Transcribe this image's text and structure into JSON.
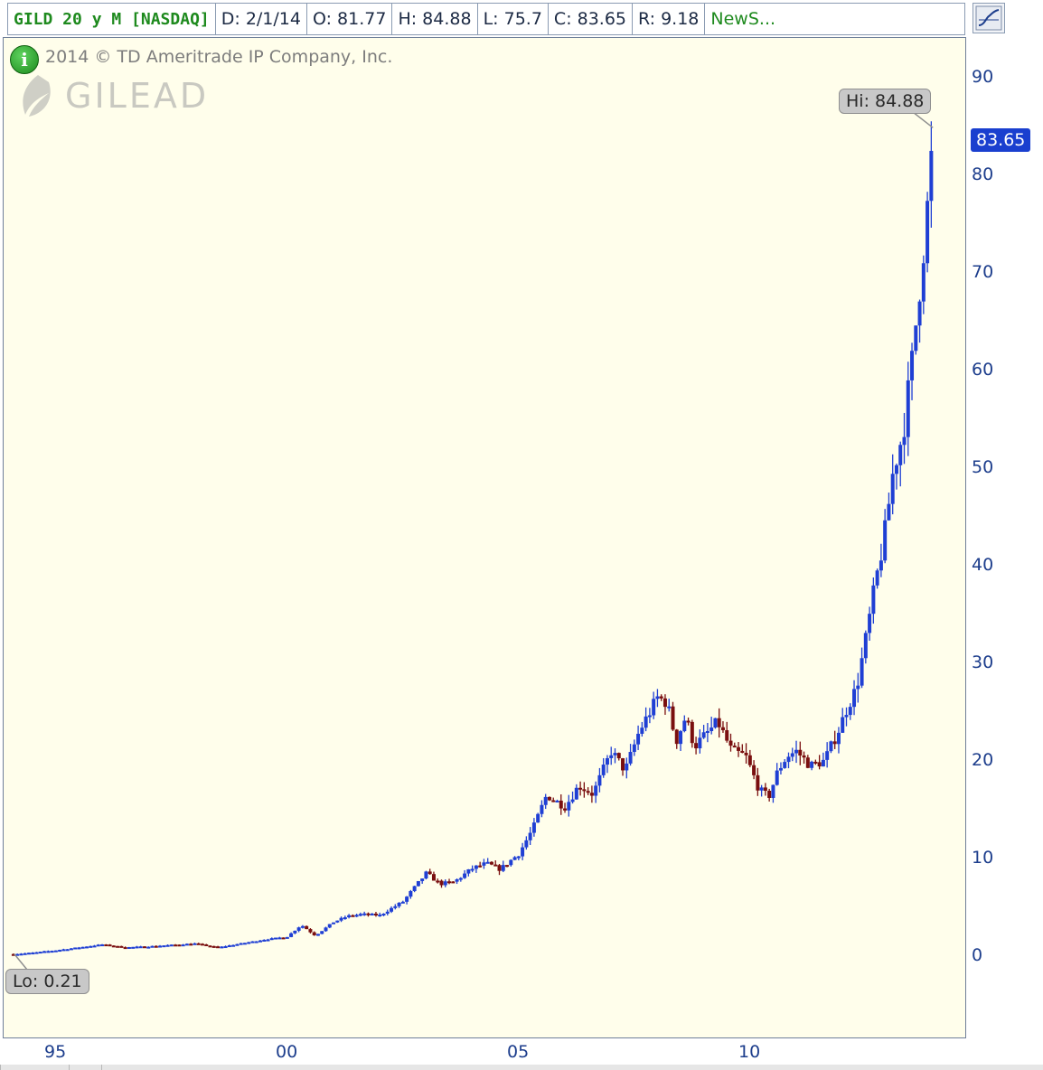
{
  "header": {
    "symbol": "GILD 20 y M [NASDAQ]",
    "date": "D: 2/1/14",
    "open": "O: 81.77",
    "high": "H: 84.88",
    "low": "L: 75.7",
    "close": "C: 83.65",
    "range": "R: 9.18",
    "news": "NewS..."
  },
  "copyright": "2014 © TD Ameritrade IP Company, Inc.",
  "logo_text": "GILEAD",
  "hi_label": "Hi: 84.88",
  "lo_label": "Lo: 0.21",
  "last_price": "83.65",
  "colors": {
    "up": "#1f3fd4",
    "down": "#7a0f0f",
    "background": "#fffeeb"
  },
  "chart_data": {
    "type": "line",
    "style": "ohlc-bars",
    "x_ticks": [
      "95",
      "00",
      "05",
      "10"
    ],
    "x_tick_years": [
      1995,
      2000,
      2005,
      2010
    ],
    "y_ticks": [
      "90",
      "80",
      "70",
      "60",
      "50",
      "40",
      "30",
      "20",
      "10",
      "0"
    ],
    "y_tick_values": [
      90,
      80,
      70,
      60,
      50,
      40,
      30,
      20,
      10,
      0
    ],
    "ylim": [
      -8.5,
      94.5
    ],
    "xlim": [
      1994.0,
      2014.8
    ],
    "grid": false,
    "hi": {
      "x": 2013.95,
      "value": 84.88
    },
    "lo": {
      "x": 1994.1,
      "value": 0.21
    },
    "last": 83.65,
    "series": [
      {
        "x": [
          1994.08,
          1994.5,
          1995.0,
          1995.5,
          1996.0,
          1996.5,
          1997.0,
          1997.5,
          1998.0,
          1998.5,
          1999.0,
          1999.5,
          2000.0,
          2000.3,
          2000.6,
          2001.0,
          2001.3,
          2001.6,
          2002.0,
          2002.5,
          2003.0,
          2003.3,
          2003.6,
          2004.0,
          2004.3,
          2004.6,
          2005.0,
          2005.3,
          2005.6,
          2006.0,
          2006.3,
          2006.6,
          2007.0,
          2007.3,
          2007.6,
          2008.0,
          2008.2,
          2008.4,
          2008.6,
          2008.8,
          2009.0,
          2009.3,
          2009.6,
          2009.9,
          2010.2,
          2010.4,
          2010.6,
          2010.8,
          2011.0,
          2011.3,
          2011.6,
          2011.9,
          2012.1,
          2012.3,
          2012.5,
          2012.7,
          2012.9,
          2013.1,
          2013.3,
          2013.5,
          2013.65,
          2013.8,
          2013.95
        ],
        "close": [
          0.21,
          0.35,
          0.6,
          0.9,
          1.2,
          0.9,
          1.0,
          1.15,
          1.3,
          0.9,
          1.3,
          1.7,
          2.0,
          3.2,
          2.1,
          3.5,
          4.1,
          4.3,
          4.2,
          5.6,
          8.5,
          7.4,
          7.6,
          9.0,
          9.5,
          8.9,
          10.5,
          13.0,
          16.5,
          15.3,
          17.5,
          16.6,
          21.0,
          19.0,
          23.0,
          26.5,
          26.0,
          22.0,
          24.5,
          21.5,
          22.5,
          24.0,
          21.0,
          20.5,
          17.0,
          16.3,
          19.0,
          20.5,
          21.0,
          19.5,
          20.0,
          23.0,
          25.5,
          27.5,
          32.5,
          38.0,
          43.0,
          50.0,
          53.5,
          61.0,
          68.0,
          75.0,
          83.65
        ]
      }
    ]
  }
}
